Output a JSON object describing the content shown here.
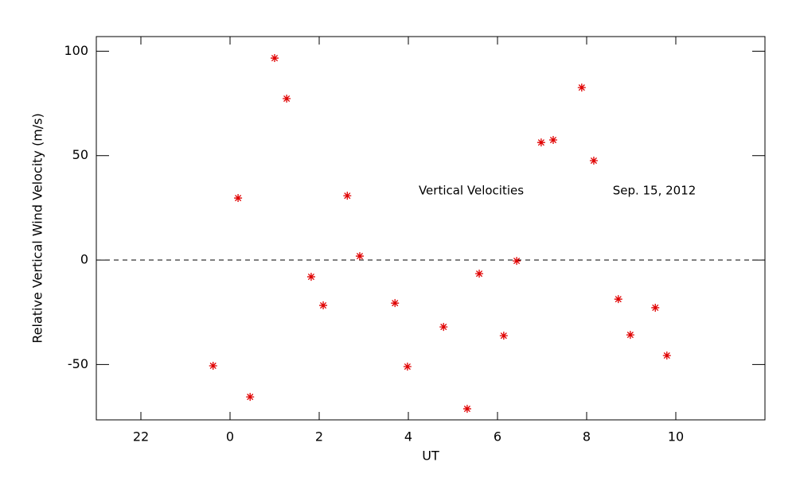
{
  "chart_data": {
    "type": "scatter",
    "x_label": "UT",
    "y_label": "Relative Vertical Wind Velocity (m/s)",
    "annotations": [
      "Vertical Velocities",
      "Sep. 15, 2012"
    ],
    "color": "#e00000",
    "marker": "asterisk",
    "reference_line": 0,
    "xlim": [
      -3,
      12
    ],
    "ylim": [
      -76.5,
      107
    ],
    "xticks": [
      {
        "value": -2,
        "label": "22"
      },
      0,
      2,
      4,
      6,
      8,
      10
    ],
    "yticks": [
      -50,
      0,
      50,
      100
    ],
    "x": [
      -0.38,
      0.18,
      0.45,
      1.0,
      1.27,
      1.82,
      2.09,
      2.63,
      2.91,
      3.7,
      3.98,
      4.79,
      5.32,
      5.59,
      6.14,
      6.43,
      6.98,
      7.25,
      7.89,
      8.16,
      8.71,
      8.98,
      9.54,
      9.8
    ],
    "values": [
      -50.6,
      29.7,
      -65.5,
      96.7,
      77.3,
      -8.0,
      -21.7,
      30.8,
      1.9,
      -20.6,
      -51.0,
      -32.0,
      -71.2,
      -6.5,
      -36.2,
      -0.4,
      56.3,
      57.5,
      82.6,
      47.6,
      -18.7,
      -35.8,
      -22.8,
      -45.7
    ]
  }
}
